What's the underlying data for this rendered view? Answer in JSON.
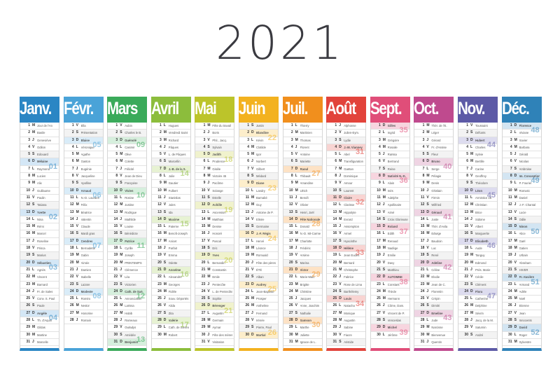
{
  "title": "2021",
  "day_letters": [
    "V",
    "S",
    "D",
    "L",
    "M",
    "M",
    "J"
  ],
  "months": [
    {
      "name": "Janv.",
      "color": "#2b86c4",
      "tint": "#d4e7f6",
      "days": 31,
      "first": 4,
      "weeks": [
        {
          "day": 7,
          "n": "01"
        },
        {
          "day": 14,
          "n": "02"
        },
        {
          "day": 21,
          "n": "03"
        },
        {
          "day": 28,
          "n": "04"
        }
      ],
      "saints": {
        "1": "Jour de l'An",
        "2": "Basile",
        "3": "Geneviève",
        "4": "Odilon",
        "5": "Edouard",
        "6": "Mélaine",
        "7": "Raymond",
        "8": "Lucien",
        "9": "Alix",
        "10": "Guillaume",
        "11": "Paulin",
        "12": "Tatiana",
        "13": "Yvette",
        "14": "Nina",
        "15": "Rémi",
        "16": "Marcel",
        "17": "Roseline",
        "18": "Prisca",
        "19": "Marius",
        "20": "Sébastien",
        "21": "Agnès",
        "22": "Vincent",
        "23": "Barnard",
        "24": "Fr. de Sales",
        "25": "Conv. S. Paul",
        "26": "Paule",
        "27": "Angèle",
        "28": "Th. d'Aquin",
        "29": "Gildas",
        "30": "Martine",
        "31": "Marcelle"
      }
    },
    {
      "name": "Févr.",
      "color": "#4aa3d8",
      "tint": "#d9ecf8",
      "days": 28,
      "first": 0,
      "weeks": [
        {
          "day": 4,
          "n": "05"
        },
        {
          "day": 11,
          "n": "06"
        },
        {
          "day": 18,
          "n": "07"
        },
        {
          "day": 25,
          "n": "08"
        }
      ],
      "saints": {
        "1": "Ella",
        "2": "Présentation",
        "3": "Blaise",
        "4": "Véronique",
        "5": "Agathe",
        "6": "Gaston",
        "7": "Eugénie",
        "8": "Jacqueline",
        "9": "Apolline",
        "10": "Arnaud",
        "11": "N.-D. Lourdes",
        "12": "Félix",
        "13": "Béatrice",
        "14": "Valentin",
        "15": "Claude",
        "16": "Mardi gras",
        "17": "Cendres",
        "18": "Bernadette",
        "19": "Gabin",
        "20": "Aimée",
        "21": "Damien",
        "22": "Isabelle",
        "23": "Lazare",
        "24": "Modeste",
        "25": "Roméo",
        "26": "Nestor",
        "27": "Honorine",
        "28": "Romain"
      }
    },
    {
      "name": "Mars",
      "color": "#3aaa5a",
      "tint": "#d6efdd",
      "days": 31,
      "first": 0,
      "weeks": [
        {
          "day": 4,
          "n": "09"
        },
        {
          "day": 11,
          "n": "10"
        },
        {
          "day": 18,
          "n": "11"
        },
        {
          "day": 25,
          "n": "12"
        },
        {
          "day": 31,
          "n": "13"
        }
      ],
      "saints": {
        "1": "Aubin",
        "2": "Charles le B.",
        "3": "Guénolé",
        "4": "Casimir",
        "5": "Olive",
        "6": "Colette",
        "7": "Félicité",
        "8": "Jean de Dieu",
        "9": "Françoise",
        "10": "Vivien",
        "11": "Rosine",
        "12": "Justine",
        "13": "Rodrigue",
        "14": "Mathilde",
        "15": "Louise",
        "16": "Bénédicte",
        "17": "Patrice",
        "18": "Cyrille",
        "19": "Joseph",
        "20": "PRINTEMPS",
        "21": "Clémence",
        "22": "Léa",
        "23": "Victorien",
        "24": "Cath. de Suè.",
        "25": "Annonciation",
        "26": "Larissa",
        "27": "Habib",
        "28": "Rameaux",
        "29": "Gwladys",
        "30": "Amédée",
        "31": "Benjamin"
      }
    },
    {
      "name": "Avril",
      "color": "#8cbd3c",
      "tint": "#e7f2d3",
      "days": 30,
      "first": 3,
      "weeks": [
        {
          "day": 8,
          "n": "14"
        },
        {
          "day": 15,
          "n": "15"
        },
        {
          "day": 22,
          "n": "16"
        },
        {
          "day": 29,
          "n": "17"
        }
      ],
      "saints": {
        "1": "Hugues",
        "2": "Vendredi Saint",
        "3": "Richard",
        "4": "Pâques",
        "5": "L. de Pâques",
        "6": "Marcellin",
        "7": "J.-B. de la S.",
        "8": "Julie",
        "9": "Gautier",
        "10": "Fulbert",
        "11": "Stanislas",
        "12": "Jules",
        "13": "Ida",
        "14": "Maxime",
        "15": "Paterne",
        "16": "Benoît-Joseph",
        "17": "Anicet",
        "18": "Parfait",
        "19": "Emma",
        "20": "Odette",
        "21": "Anselme",
        "22": "Alexandre",
        "23": "Georges",
        "24": "Fidèle",
        "25": "Souv. Déportés",
        "26": "Alida",
        "27": "Zita",
        "28": "Valérie",
        "29": "Cath. de Sienne",
        "30": "Robert"
      }
    },
    {
      "name": "Mai",
      "color": "#bcc42a",
      "tint": "#f0f2cd",
      "days": 31,
      "first": 5,
      "weeks": [
        {
          "day": 6,
          "n": "18"
        },
        {
          "day": 13,
          "n": "19"
        },
        {
          "day": 20,
          "n": "20"
        },
        {
          "day": 27,
          "n": "21"
        }
      ],
      "saints": {
        "1": "Fête du travail",
        "2": "Boris",
        "3": "Phil., Jacq.",
        "4": "Sylvain",
        "5": "Judith",
        "6": "Prudence",
        "7": "Gisèle",
        "8": "Victoire 45",
        "9": "Pacôme",
        "10": "Solange",
        "11": "Estelle",
        "12": "Achille",
        "13": "Ascension",
        "14": "Matthias",
        "15": "Denise",
        "16": "Honoré",
        "17": "Pascal",
        "18": "Eric",
        "19": "Yves",
        "20": "Bernardin",
        "21": "Constantin",
        "22": "Emile",
        "23": "Pentecôte",
        "24": "L. de Pentecôte",
        "25": "Sophie",
        "26": "Bérenger",
        "27": "Augustin",
        "28": "Germain",
        "29": "Aymar",
        "30": "Fête des mères",
        "31": "Visitation"
      }
    },
    {
      "name": "Juin",
      "color": "#f3b21f",
      "tint": "#fdeecb",
      "days": 30,
      "first": 1,
      "weeks": [
        {
          "day": 3,
          "n": "22"
        },
        {
          "day": 10,
          "n": "23"
        },
        {
          "day": 17,
          "n": "24"
        },
        {
          "day": 24,
          "n": "25"
        },
        {
          "day": 30,
          "n": "26"
        }
      ],
      "saints": {
        "1": "Justin",
        "2": "Blandine",
        "3": "Kévin",
        "4": "Clotilde",
        "5": "Igor",
        "6": "Norbert",
        "7": "Gilbert",
        "8": "Médard",
        "9": "Diane",
        "10": "Landry",
        "11": "Barnabé",
        "12": "Guy",
        "13": "Antoine de P.",
        "14": "Elisée",
        "15": "Germaine",
        "16": "J.-F. Régis",
        "17": "Hervé",
        "18": "Léonce",
        "19": "Romuald",
        "20": "Fête des pères",
        "21": "ÉTÉ",
        "22": "Alban",
        "23": "Audrey",
        "24": "Jean-Baptiste",
        "25": "Prosper",
        "26": "Anthelme",
        "27": "Fernand",
        "28": "Irénée",
        "29": "Pierre, Paul",
        "30": "Martial"
      }
    },
    {
      "name": "Juil.",
      "color": "#f18f1d",
      "tint": "#fde2c5",
      "days": 31,
      "first": 3,
      "weeks": [
        {
          "day": 8,
          "n": "27"
        },
        {
          "day": 15,
          "n": "28"
        },
        {
          "day": 22,
          "n": "29"
        },
        {
          "day": 29,
          "n": "30"
        }
      ],
      "saints": {
        "1": "Thierry",
        "2": "Martinien",
        "3": "Thomas",
        "4": "Florent",
        "5": "Antoine",
        "6": "Mariette",
        "7": "Raoul",
        "8": "Thibault",
        "9": "Amandine",
        "10": "Ulrich",
        "11": "Benoît",
        "12": "Olivier",
        "13": "Henri, Joël",
        "14": "Fête Nationale",
        "15": "Donald",
        "16": "N.-D. Mt-Carmel",
        "17": "Charlotte",
        "18": "Frédéric",
        "19": "Arsène",
        "20": "Marina",
        "21": "Victor",
        "22": "Marie-Mad.",
        "23": "Brigitte",
        "24": "Christine",
        "25": "Jacques",
        "26": "Anne, Joachim",
        "27": "Nathalie",
        "28": "Samson",
        "29": "Marthe",
        "30": "Juliette",
        "31": "Ignace de L."
      }
    },
    {
      "name": "Août",
      "color": "#e2433b",
      "tint": "#f8d4d2",
      "days": 31,
      "first": 6,
      "weeks": [
        {
          "day": 5,
          "n": "31"
        },
        {
          "day": 12,
          "n": "32"
        },
        {
          "day": 19,
          "n": "33"
        },
        {
          "day": 26,
          "n": "34"
        }
      ],
      "saints": {
        "1": "Alphonse",
        "2": "Julien-Eym.",
        "3": "Lydie",
        "4": "J.-M. Vianney",
        "5": "Abel",
        "6": "Transfiguration",
        "7": "Gaëtan",
        "8": "Dominique",
        "9": "Amour",
        "10": "Laurent",
        "11": "Claire",
        "12": "Clarisse",
        "13": "Hippolyte",
        "14": "Evrard",
        "15": "Assomption",
        "16": "Armel",
        "17": "Hyacinthe",
        "18": "Hélène",
        "19": "Jean Eudes",
        "20": "Bernard",
        "21": "Christophe",
        "22": "Fabrice",
        "23": "Rose de Lima",
        "24": "Barthélemy",
        "25": "Louis",
        "26": "Natacha",
        "27": "Monique",
        "28": "Augustin",
        "29": "Sabine",
        "30": "Fiacre",
        "31": "Aristide"
      }
    },
    {
      "name": "Sept.",
      "color": "#e04e79",
      "tint": "#f7d5df",
      "days": 30,
      "first": 2,
      "weeks": [
        {
          "day": 2,
          "n": "35"
        },
        {
          "day": 9,
          "n": "36"
        },
        {
          "day": 16,
          "n": "37"
        },
        {
          "day": 23,
          "n": "38"
        },
        {
          "day": 30,
          "n": "39"
        }
      ],
      "saints": {
        "1": "Gilles",
        "2": "Ingrid",
        "3": "Grégoire",
        "4": "Rosalie",
        "5": "Raïssa",
        "6": "Bertrand",
        "7": "Reine",
        "8": "Nativité N.-D.",
        "9": "Alain",
        "10": "Inès",
        "11": "Adelphe",
        "12": "Apollinaire",
        "13": "Aimé",
        "14": "Croix Glorieuse",
        "15": "Roland",
        "16": "Edith",
        "17": "Renaud",
        "18": "Nadège",
        "19": "Emilie",
        "20": "Davy",
        "21": "Matthieu",
        "22": "AUTOMNE",
        "23": "Constant",
        "24": "Thècle",
        "25": "Hermann",
        "26": "Côme, Dam.",
        "27": "Vincent de P.",
        "28": "Venceslas",
        "29": "Michel",
        "30": "Jérôme"
      }
    },
    {
      "name": "Oct.",
      "color": "#bf4a8e",
      "tint": "#efd4e3",
      "days": 31,
      "first": 4,
      "weeks": [
        {
          "day": 7,
          "n": "40"
        },
        {
          "day": 14,
          "n": "41"
        },
        {
          "day": 21,
          "n": "42"
        },
        {
          "day": 28,
          "n": "43"
        }
      ],
      "saints": {
        "1": "Thér. de l'E.",
        "2": "Léger",
        "3": "Gérard",
        "4": "Fr. d'Assise",
        "5": "Fleur",
        "6": "Bruno",
        "7": "Serge",
        "8": "Pélagie",
        "9": "Denis",
        "10": "Ghislain",
        "11": "Firmin",
        "12": "Wilfried",
        "13": "Géraud",
        "14": "Juste",
        "15": "Thér. d'Avila",
        "16": "Edwige",
        "17": "Baudoin",
        "18": "Luc",
        "19": "René",
        "20": "Adeline",
        "21": "Céline",
        "22": "Elodie",
        "23": "Jean de C.",
        "24": "Florentin",
        "25": "Crépin",
        "26": "Dimitri",
        "27": "Emeline",
        "28": "Jude",
        "29": "Narcisse",
        "30": "Bienvenue",
        "31": "Quentin"
      }
    },
    {
      "name": "Nov.",
      "color": "#5d5aa6",
      "tint": "#dddcef",
      "days": 30,
      "first": 0,
      "weeks": [
        {
          "day": 4,
          "n": "44"
        },
        {
          "day": 11,
          "n": "45"
        },
        {
          "day": 18,
          "n": "46"
        },
        {
          "day": 25,
          "n": "47"
        }
      ],
      "saints": {
        "1": "Toussaint",
        "2": "Défunts",
        "3": "Hubert",
        "4": "Charles",
        "5": "Sylvie",
        "6": "Bertille",
        "7": "Carine",
        "8": "Geoffroy",
        "9": "Théodore",
        "10": "Léon",
        "11": "Armistice 18",
        "12": "Christian",
        "13": "Brice",
        "14": "Sidoine",
        "15": "Albert",
        "16": "Marguerite",
        "17": "Elisabeth",
        "18": "Aude",
        "19": "Tanguy",
        "20": "Edmond",
        "21": "Prés. Marie",
        "22": "Cécile",
        "23": "Clément",
        "24": "Flora",
        "25": "Catherine",
        "26": "Delphine",
        "27": "Sévrin",
        "28": "Jacq. de la M.",
        "29": "Saturnin",
        "30": "André"
      }
    },
    {
      "name": "Déc.",
      "color": "#2f82b8",
      "tint": "#d3e5f2",
      "days": 31,
      "first": 2,
      "weeks": [
        {
          "day": 2,
          "n": "48"
        },
        {
          "day": 9,
          "n": "49"
        },
        {
          "day": 16,
          "n": "50"
        },
        {
          "day": 23,
          "n": "51"
        },
        {
          "day": 30,
          "n": "52"
        }
      ],
      "saints": {
        "1": "Florence",
        "2": "Viviane",
        "3": "Xavier",
        "4": "Barbara",
        "5": "Gérald",
        "6": "Nicolas",
        "7": "Ambroise",
        "8": "Im. Conception",
        "9": "P. Fourier",
        "10": "Romaric",
        "11": "Daniel",
        "12": "J.-F. Chantal",
        "13": "Lucie",
        "14": "Odile",
        "15": "Ninon",
        "16": "Alice",
        "17": "Gaël",
        "18": "Gatien",
        "19": "Urbain",
        "20": "Abraham",
        "21": "HIVER",
        "22": "Fr.-Xavière",
        "23": "Armand",
        "24": "Adèle",
        "25": "Noël",
        "26": "Etienne",
        "27": "Jean",
        "28": "Innocents",
        "29": "David",
        "30": "Roger",
        "31": "Sylvestre"
      }
    }
  ]
}
